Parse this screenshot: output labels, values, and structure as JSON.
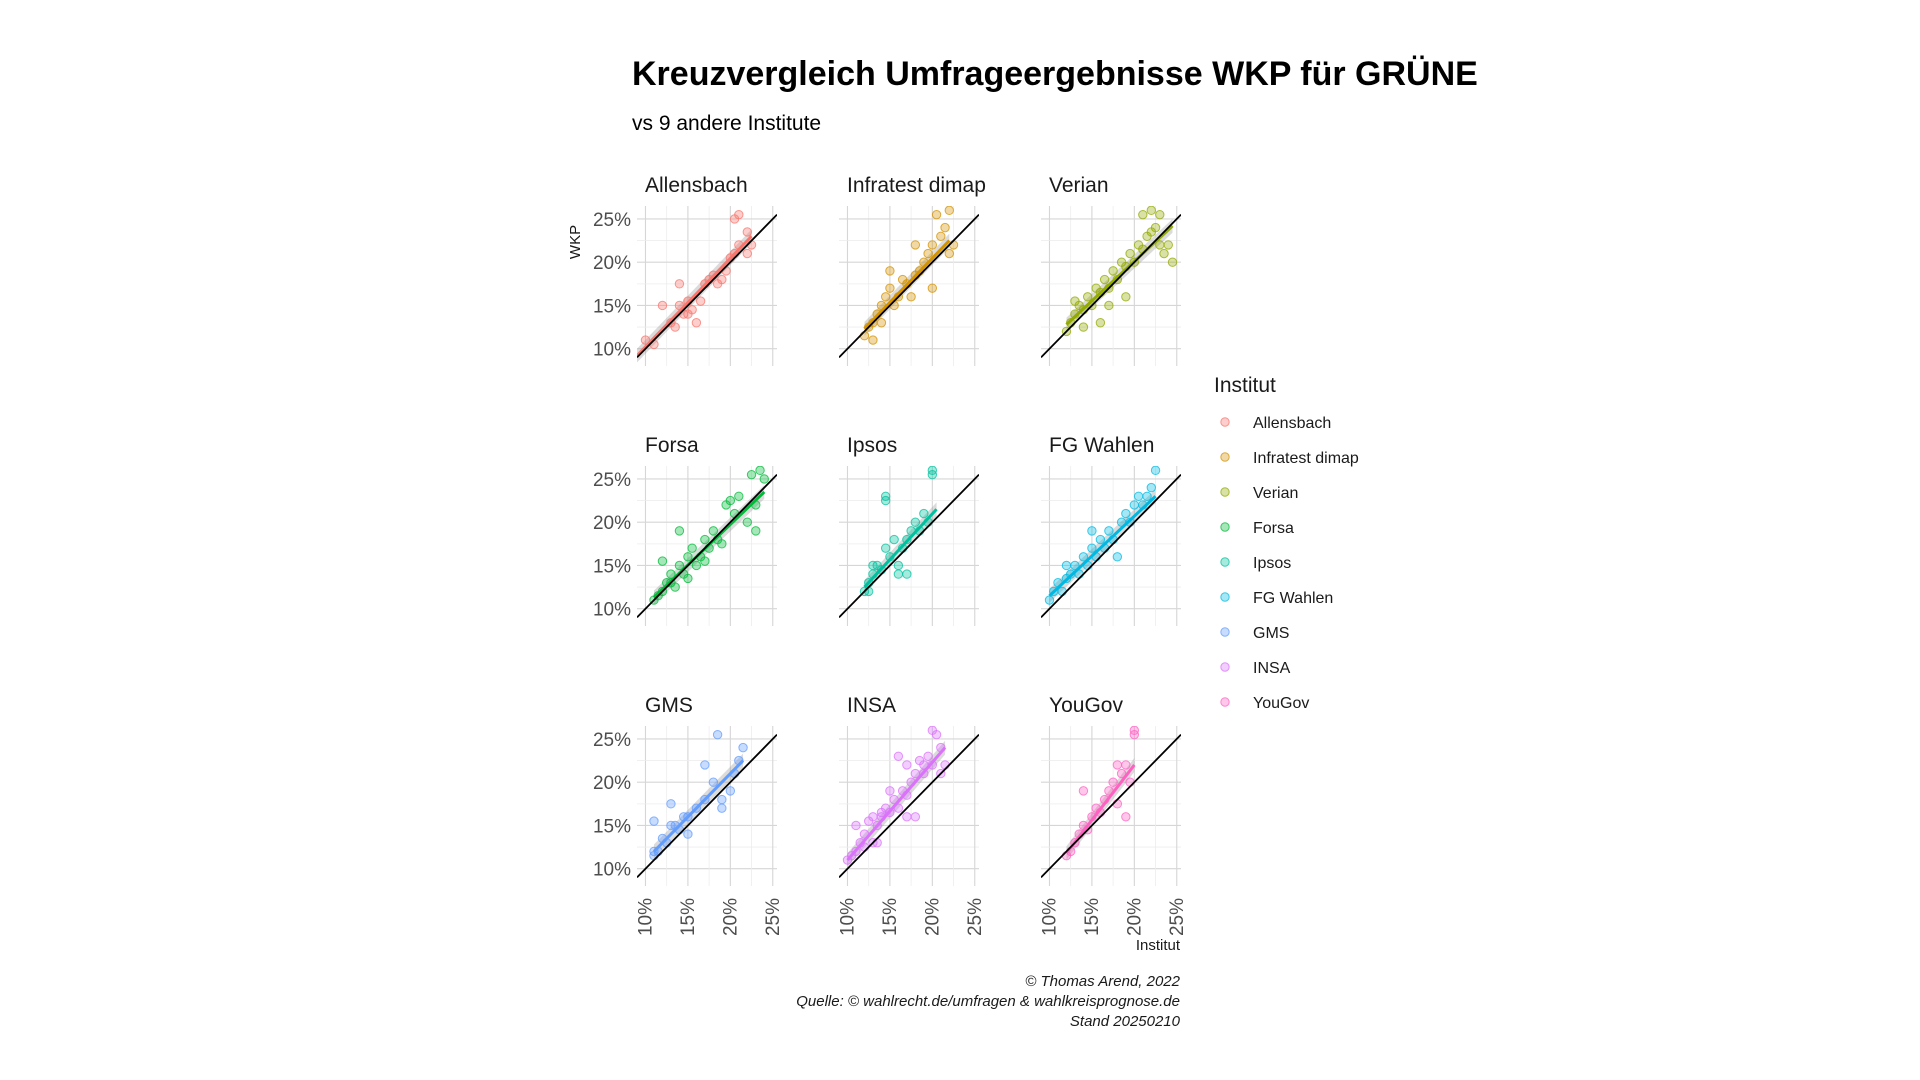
{
  "chart_data": {
    "type": "scatter",
    "title": "Kreuzvergleich Umfrageergebnisse WKP für GRÜNE",
    "subtitle": "vs 9 andere Institute",
    "xlabel": "Institut",
    "ylabel": "WKP",
    "xlim": [
      9,
      25.5
    ],
    "ylim": [
      8,
      26.5
    ],
    "ticks": [
      10,
      15,
      20,
      25
    ],
    "tick_labels": [
      "10%",
      "15%",
      "20%",
      "25%"
    ],
    "reference_line": "y = x",
    "grid": true,
    "legend_title": "Institut",
    "legend_position": "right",
    "caption": [
      "© Thomas Arend, 2022",
      "Quelle: © wahlrecht.de/umfragen & wahlkreisprognose.de",
      "Stand 20250210"
    ],
    "panels": [
      {
        "name": "Allensbach",
        "color": "#F8766D",
        "points": [
          [
            10,
            11
          ],
          [
            11,
            10.5
          ],
          [
            12,
            15
          ],
          [
            13,
            13
          ],
          [
            13.5,
            12.5
          ],
          [
            14,
            15
          ],
          [
            14.5,
            14
          ],
          [
            15,
            15.5
          ],
          [
            15.5,
            14.5
          ],
          [
            16,
            13
          ],
          [
            16.5,
            15.5
          ],
          [
            17,
            17.5
          ],
          [
            17.5,
            18
          ],
          [
            18,
            18.5
          ],
          [
            18.5,
            17.5
          ],
          [
            19,
            18
          ],
          [
            19.5,
            19
          ],
          [
            20,
            20.5
          ],
          [
            20.5,
            21
          ],
          [
            21,
            22
          ],
          [
            21,
            25.5
          ],
          [
            20.5,
            25
          ],
          [
            22,
            23.5
          ],
          [
            22.5,
            22
          ],
          [
            22,
            21
          ],
          [
            14,
            17.5
          ],
          [
            15,
            14
          ]
        ],
        "fit": [
          [
            9,
            9.2
          ],
          [
            22.5,
            23
          ]
        ]
      },
      {
        "name": "Infratest dimap",
        "color": "#D39200",
        "points": [
          [
            12,
            11.5
          ],
          [
            12.5,
            12.5
          ],
          [
            13,
            13
          ],
          [
            13.5,
            14
          ],
          [
            14,
            15
          ],
          [
            14.5,
            16
          ],
          [
            15,
            17
          ],
          [
            15.5,
            15
          ],
          [
            16,
            16
          ],
          [
            16.5,
            18
          ],
          [
            17,
            17.5
          ],
          [
            17.5,
            16
          ],
          [
            18,
            18.5
          ],
          [
            18.5,
            19
          ],
          [
            19,
            20
          ],
          [
            19.5,
            21
          ],
          [
            20,
            22
          ],
          [
            20.5,
            25.5
          ],
          [
            21,
            23
          ],
          [
            21.5,
            24
          ],
          [
            22,
            21
          ],
          [
            22.5,
            22
          ],
          [
            22,
            26
          ],
          [
            13,
            11
          ],
          [
            14,
            13
          ],
          [
            15,
            19
          ],
          [
            18,
            22
          ],
          [
            20,
            17
          ]
        ],
        "fit": [
          [
            12,
            12.3
          ],
          [
            22,
            22.5
          ]
        ]
      },
      {
        "name": "Verian",
        "color": "#93AA00",
        "points": [
          [
            12,
            12
          ],
          [
            12.5,
            13
          ],
          [
            13,
            14
          ],
          [
            13.5,
            15
          ],
          [
            14,
            14.5
          ],
          [
            14.5,
            16
          ],
          [
            15,
            15
          ],
          [
            15.5,
            17
          ],
          [
            16,
            16.5
          ],
          [
            16.5,
            18
          ],
          [
            17,
            17
          ],
          [
            17.5,
            19
          ],
          [
            18,
            18
          ],
          [
            18.5,
            20
          ],
          [
            19,
            19.5
          ],
          [
            19.5,
            21
          ],
          [
            20,
            20
          ],
          [
            20.5,
            22
          ],
          [
            21,
            21.5
          ],
          [
            21.5,
            23
          ],
          [
            22,
            23.5
          ],
          [
            22.5,
            24
          ],
          [
            23,
            22
          ],
          [
            23.5,
            21
          ],
          [
            24,
            22
          ],
          [
            24.5,
            20
          ],
          [
            22,
            26
          ],
          [
            23,
            25.5
          ],
          [
            21,
            25.5
          ],
          [
            14,
            12.5
          ],
          [
            16,
            13
          ],
          [
            17,
            15
          ],
          [
            19,
            16
          ],
          [
            13,
            15.5
          ]
        ],
        "fit": [
          [
            12,
            12.8
          ],
          [
            24.5,
            24.2
          ]
        ]
      },
      {
        "name": "Forsa",
        "color": "#00BA38",
        "points": [
          [
            11,
            11
          ],
          [
            11.5,
            11.5
          ],
          [
            12,
            12
          ],
          [
            12.5,
            13
          ],
          [
            13,
            14
          ],
          [
            13.5,
            12.5
          ],
          [
            14,
            15
          ],
          [
            14.5,
            14
          ],
          [
            15,
            16
          ],
          [
            15.5,
            17
          ],
          [
            16,
            15
          ],
          [
            16.5,
            16
          ],
          [
            17,
            18
          ],
          [
            17.5,
            17
          ],
          [
            18,
            19
          ],
          [
            18.5,
            18
          ],
          [
            19,
            17.5
          ],
          [
            19.5,
            22
          ],
          [
            20,
            22.5
          ],
          [
            20.5,
            21
          ],
          [
            21,
            23
          ],
          [
            22,
            20
          ],
          [
            22.5,
            25.5
          ],
          [
            23,
            22
          ],
          [
            23.5,
            26
          ],
          [
            24,
            25
          ],
          [
            23,
            19
          ],
          [
            13,
            13
          ],
          [
            15,
            13.5
          ],
          [
            17,
            15.5
          ],
          [
            12,
            15.5
          ],
          [
            14,
            19
          ]
        ],
        "fit": [
          [
            11,
            11.3
          ],
          [
            24,
            23.5
          ]
        ]
      },
      {
        "name": "Ipsos",
        "color": "#00C19F",
        "points": [
          [
            12,
            12
          ],
          [
            12.5,
            13
          ],
          [
            13,
            14
          ],
          [
            13.5,
            15
          ],
          [
            14,
            14.5
          ],
          [
            14.5,
            17
          ],
          [
            15,
            16
          ],
          [
            15.5,
            18
          ],
          [
            16,
            15
          ],
          [
            16.5,
            17
          ],
          [
            17,
            18
          ],
          [
            17.5,
            19
          ],
          [
            18,
            20
          ],
          [
            18.5,
            19
          ],
          [
            19,
            21
          ],
          [
            19.5,
            20
          ],
          [
            20,
            26
          ],
          [
            20,
            25.5
          ],
          [
            14.5,
            23
          ],
          [
            14.5,
            22.5
          ],
          [
            13,
            15
          ],
          [
            16,
            14
          ],
          [
            17,
            14
          ],
          [
            12.5,
            12
          ]
        ],
        "fit": [
          [
            12,
            12.5
          ],
          [
            20.5,
            21.5
          ]
        ]
      },
      {
        "name": "FG Wahlen",
        "color": "#00B9E3",
        "points": [
          [
            10,
            11
          ],
          [
            10.5,
            12
          ],
          [
            11,
            13
          ],
          [
            11.5,
            12
          ],
          [
            12,
            13.5
          ],
          [
            12.5,
            14
          ],
          [
            13,
            15
          ],
          [
            13.5,
            14
          ],
          [
            14,
            16
          ],
          [
            14.5,
            15
          ],
          [
            15,
            17
          ],
          [
            15.5,
            16
          ],
          [
            16,
            18
          ],
          [
            16.5,
            17
          ],
          [
            17,
            19
          ],
          [
            17.5,
            18
          ],
          [
            18,
            16
          ],
          [
            18.5,
            20
          ],
          [
            19,
            21
          ],
          [
            19.5,
            20
          ],
          [
            20,
            22
          ],
          [
            20.5,
            23
          ],
          [
            21,
            22
          ],
          [
            21.5,
            23
          ],
          [
            22,
            24
          ],
          [
            22.5,
            26
          ],
          [
            15,
            19
          ],
          [
            12,
            15
          ]
        ],
        "fit": [
          [
            10,
            11.5
          ],
          [
            22.5,
            23
          ]
        ]
      },
      {
        "name": "GMS",
        "color": "#619CFF",
        "points": [
          [
            11,
            12
          ],
          [
            11,
            11.5
          ],
          [
            11.5,
            12
          ],
          [
            12,
            13.5
          ],
          [
            12.5,
            13
          ],
          [
            13,
            15
          ],
          [
            13,
            17.5
          ],
          [
            13.5,
            15
          ],
          [
            14,
            14.5
          ],
          [
            14.5,
            16
          ],
          [
            15,
            16
          ],
          [
            15,
            14
          ],
          [
            16,
            17
          ],
          [
            17,
            18
          ],
          [
            17,
            22
          ],
          [
            18,
            20
          ],
          [
            18.5,
            25.5
          ],
          [
            19,
            18
          ],
          [
            19,
            17
          ],
          [
            20,
            19
          ],
          [
            20.5,
            21
          ],
          [
            21,
            22.5
          ],
          [
            21.5,
            24
          ],
          [
            11,
            15.5
          ]
        ],
        "fit": [
          [
            11,
            12
          ],
          [
            21.5,
            22.5
          ]
        ]
      },
      {
        "name": "INSA",
        "color": "#DB72FB",
        "points": [
          [
            10,
            11
          ],
          [
            10.5,
            11.5
          ],
          [
            11,
            12
          ],
          [
            11.5,
            13
          ],
          [
            12,
            14
          ],
          [
            12.5,
            15.5
          ],
          [
            13,
            13
          ],
          [
            13.5,
            15
          ],
          [
            14,
            16
          ],
          [
            14.5,
            17
          ],
          [
            15,
            16.5
          ],
          [
            15.5,
            18
          ],
          [
            16,
            17
          ],
          [
            16.5,
            19
          ],
          [
            17,
            18.5
          ],
          [
            17.5,
            20
          ],
          [
            18,
            21
          ],
          [
            18.5,
            22.5
          ],
          [
            19,
            22
          ],
          [
            19.5,
            23
          ],
          [
            20,
            26
          ],
          [
            20.5,
            25.5
          ],
          [
            21,
            24
          ],
          [
            21.5,
            22
          ],
          [
            11,
            15
          ],
          [
            13,
            16
          ],
          [
            15,
            19
          ],
          [
            17,
            16
          ],
          [
            18,
            16
          ],
          [
            19,
            21
          ],
          [
            20,
            22
          ],
          [
            21,
            21
          ],
          [
            12,
            12.5
          ],
          [
            13.5,
            13
          ],
          [
            16,
            23
          ],
          [
            17,
            22
          ],
          [
            14,
            16.5
          ]
        ],
        "fit": [
          [
            10,
            11
          ],
          [
            21.5,
            24
          ]
        ]
      },
      {
        "name": "YouGov",
        "color": "#FF61C3",
        "points": [
          [
            12,
            11.5
          ],
          [
            12.5,
            12
          ],
          [
            13,
            13
          ],
          [
            13.5,
            14
          ],
          [
            14,
            15
          ],
          [
            14.5,
            14.5
          ],
          [
            15,
            16
          ],
          [
            15.5,
            17
          ],
          [
            16,
            16.5
          ],
          [
            16.5,
            18
          ],
          [
            17,
            19
          ],
          [
            17.5,
            20
          ],
          [
            18,
            22
          ],
          [
            18.5,
            21
          ],
          [
            19,
            22
          ],
          [
            19.5,
            20
          ],
          [
            20,
            26
          ],
          [
            20,
            25.5
          ],
          [
            14,
            19
          ],
          [
            18,
            17.5
          ],
          [
            19,
            16
          ]
        ],
        "fit": [
          [
            12,
            11.8
          ],
          [
            20,
            22
          ]
        ]
      }
    ]
  }
}
